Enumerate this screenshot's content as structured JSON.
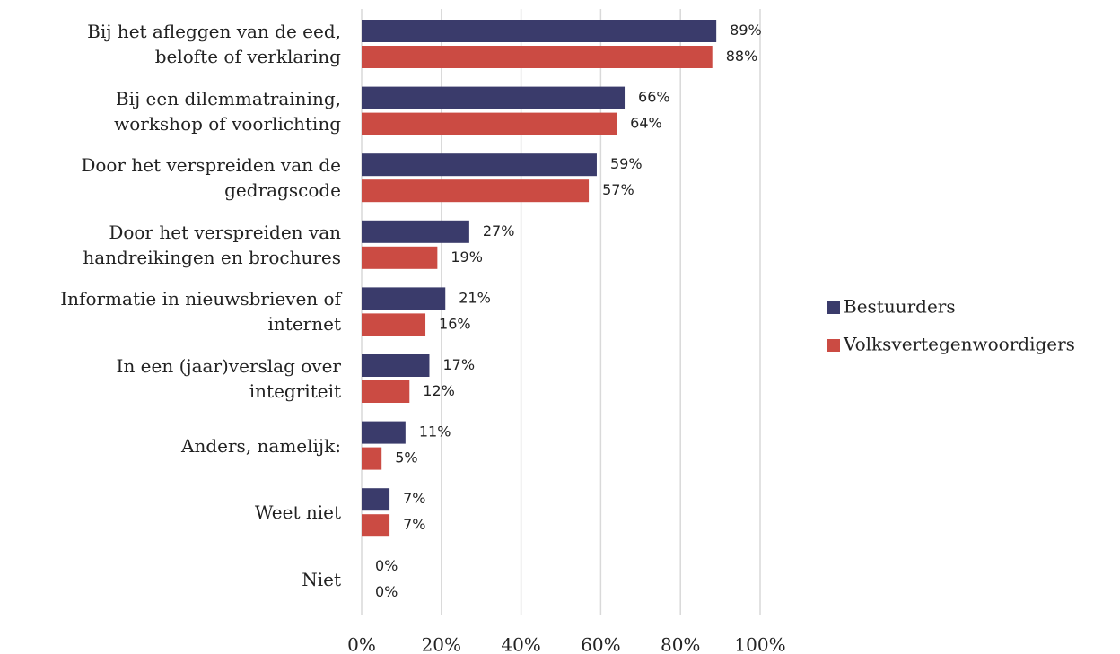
{
  "chart_data": {
    "type": "bar",
    "orientation": "horizontal",
    "categories": [
      "Bij het afleggen van de eed,\nbelofte of verklaring",
      "Bij een dilemmatraining,\nworkshop of voorlichting",
      "Door het verspreiden van de\ngedragscode",
      "Door het verspreiden van\nhandreikingen en brochures",
      "Informatie in nieuwsbrieven of\ninternet",
      "In een (jaar)verslag over\nintegriteit",
      "Anders, namelijk:",
      "Weet niet",
      "Niet"
    ],
    "series": [
      {
        "name": "Bestuurders",
        "color": "#3a3b6b",
        "values": [
          89,
          66,
          59,
          27,
          21,
          17,
          11,
          7,
          0
        ],
        "value_labels": [
          "89%",
          "66%",
          "59%",
          "27%",
          "21%",
          "17%",
          "11%",
          "7%",
          "0%"
        ]
      },
      {
        "name": "Volksvertegenwoordigers",
        "color": "#cb4b43",
        "values": [
          88,
          64,
          57,
          19,
          16,
          12,
          5,
          7,
          0
        ],
        "value_labels": [
          "88%",
          "64%",
          "57%",
          "19%",
          "16%",
          "12%",
          "5%",
          "7%",
          "0%"
        ]
      }
    ],
    "xlim": [
      0,
      100
    ],
    "xticks": [
      {
        "value": 0,
        "label": "0%"
      },
      {
        "value": 20,
        "label": "20%"
      },
      {
        "value": 40,
        "label": "40%"
      },
      {
        "value": 60,
        "label": "60%"
      },
      {
        "value": 80,
        "label": "80%"
      },
      {
        "value": 100,
        "label": "100%"
      }
    ],
    "grid": true,
    "legend": "right"
  }
}
